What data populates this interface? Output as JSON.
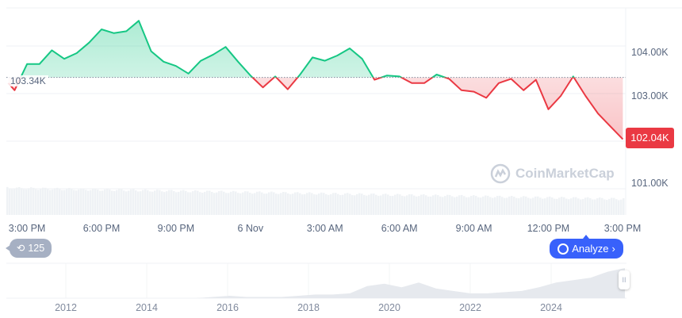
{
  "chart_data": {
    "type": "line",
    "baseline": {
      "value": 103.34,
      "label": "103.34K"
    },
    "current_price": {
      "value": 102.04,
      "label": "102.04K"
    },
    "colors": {
      "up": "#16c784",
      "down": "#ea3943",
      "volume": "#eff2f5"
    },
    "ylim": [
      100.45,
      104.8
    ],
    "y_ticks": [
      {
        "v": 104,
        "label": "104.00K"
      },
      {
        "v": 103,
        "label": "103.00K"
      },
      {
        "v": 101,
        "label": "101.00K"
      }
    ],
    "x_ticks": [
      {
        "t": "5 Nov 15:00",
        "label": "3:00 PM"
      },
      {
        "t": "5 Nov 18:00",
        "label": "6:00 PM"
      },
      {
        "t": "5 Nov 21:00",
        "label": "9:00 PM"
      },
      {
        "t": "6 Nov 00:00",
        "label": "6 Nov"
      },
      {
        "t": "6 Nov 03:00",
        "label": "3:00 AM"
      },
      {
        "t": "6 Nov 06:00",
        "label": "6:00 AM"
      },
      {
        "t": "6 Nov 09:00",
        "label": "9:00 AM"
      },
      {
        "t": "6 Nov 12:00",
        "label": "12:00 PM"
      },
      {
        "t": "6 Nov 15:00",
        "label": "3:00 PM"
      }
    ],
    "x_range": [
      "5 Nov 14:10",
      "6 Nov 15:05"
    ],
    "points": [
      [
        "5 Nov 14:15",
        103.22
      ],
      [
        "5 Nov 14:30",
        103.07
      ],
      [
        "5 Nov 15:00",
        103.62
      ],
      [
        "5 Nov 15:30",
        103.62
      ],
      [
        "5 Nov 16:00",
        103.91
      ],
      [
        "5 Nov 16:30",
        103.73
      ],
      [
        "5 Nov 17:00",
        103.85
      ],
      [
        "5 Nov 17:30",
        104.07
      ],
      [
        "5 Nov 18:00",
        104.35
      ],
      [
        "5 Nov 18:30",
        104.27
      ],
      [
        "5 Nov 19:00",
        104.31
      ],
      [
        "5 Nov 19:30",
        104.53
      ],
      [
        "5 Nov 20:00",
        103.89
      ],
      [
        "5 Nov 20:30",
        103.67
      ],
      [
        "5 Nov 21:00",
        103.58
      ],
      [
        "5 Nov 21:30",
        103.42
      ],
      [
        "5 Nov 22:00",
        103.69
      ],
      [
        "5 Nov 22:30",
        103.82
      ],
      [
        "5 Nov 23:00",
        103.98
      ],
      [
        "5 Nov 23:30",
        103.67
      ],
      [
        "6 Nov 00:00",
        103.38
      ],
      [
        "6 Nov 00:30",
        103.13
      ],
      [
        "6 Nov 01:00",
        103.36
      ],
      [
        "6 Nov 01:30",
        103.09
      ],
      [
        "6 Nov 02:00",
        103.4
      ],
      [
        "6 Nov 02:30",
        103.76
      ],
      [
        "6 Nov 03:00",
        103.69
      ],
      [
        "6 Nov 03:30",
        103.8
      ],
      [
        "6 Nov 04:00",
        103.95
      ],
      [
        "6 Nov 04:30",
        103.73
      ],
      [
        "6 Nov 05:00",
        103.29
      ],
      [
        "6 Nov 05:30",
        103.38
      ],
      [
        "6 Nov 06:00",
        103.36
      ],
      [
        "6 Nov 06:30",
        103.22
      ],
      [
        "6 Nov 07:00",
        103.22
      ],
      [
        "6 Nov 07:30",
        103.4
      ],
      [
        "6 Nov 08:00",
        103.31
      ],
      [
        "6 Nov 08:30",
        103.07
      ],
      [
        "6 Nov 09:00",
        103.04
      ],
      [
        "6 Nov 09:30",
        102.91
      ],
      [
        "6 Nov 10:00",
        103.22
      ],
      [
        "6 Nov 10:30",
        103.31
      ],
      [
        "6 Nov 11:00",
        103.07
      ],
      [
        "6 Nov 11:30",
        103.29
      ],
      [
        "6 Nov 12:00",
        102.67
      ],
      [
        "6 Nov 12:30",
        102.95
      ],
      [
        "6 Nov 13:00",
        103.36
      ],
      [
        "6 Nov 13:30",
        102.95
      ],
      [
        "6 Nov 14:00",
        102.58
      ],
      [
        "6 Nov 15:00",
        102.04
      ]
    ],
    "navigator": {
      "year_ticks": [
        "2012",
        "2014",
        "2016",
        "2018",
        "2020",
        "2022",
        "2024"
      ],
      "values": [
        0,
        0,
        0,
        0,
        0,
        0,
        0,
        0,
        0,
        0,
        0,
        0,
        1,
        2,
        1,
        1,
        1,
        2,
        3,
        3,
        4,
        10,
        12,
        9,
        13,
        8,
        6,
        4,
        4,
        5,
        6,
        9,
        13,
        15,
        17,
        22,
        25
      ]
    }
  },
  "controls": {
    "history_count": "125",
    "analyze_label": "Analyze",
    "analyze_chevron": "›",
    "watermark": "CoinMarketCap",
    "handle": "II"
  }
}
